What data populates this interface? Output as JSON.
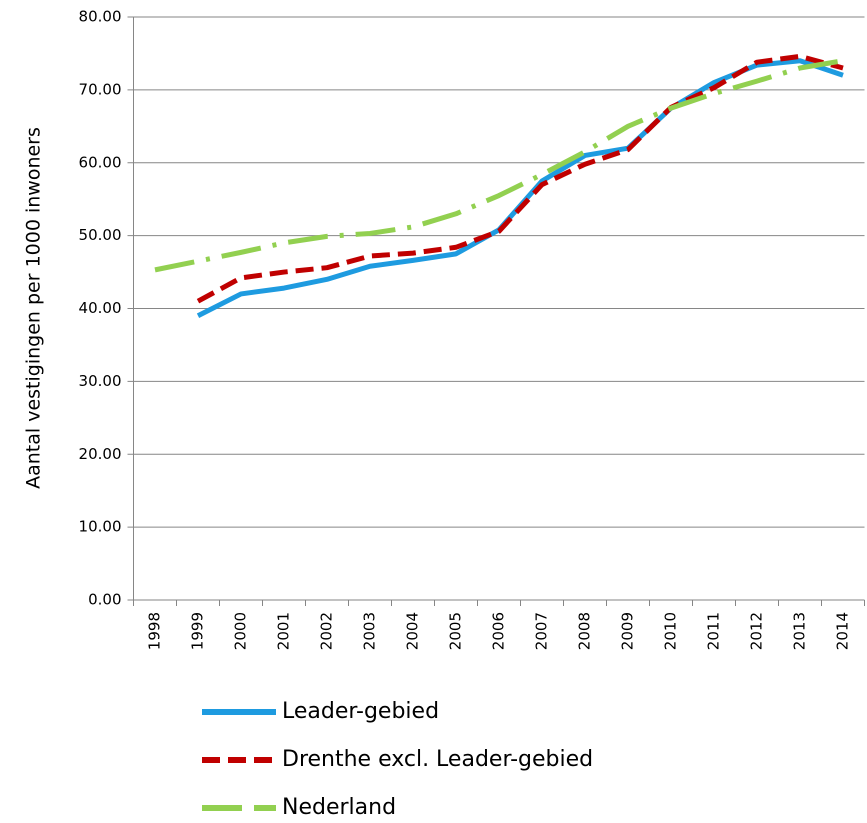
{
  "chart_data": {
    "type": "line",
    "y_label": "Aantal vestigingen per 1000 inwoners",
    "categories": [
      "1998",
      "1999",
      "2000",
      "2001",
      "2002",
      "2003",
      "2004",
      "2005",
      "2006",
      "2007",
      "2008",
      "2009",
      "2010",
      "2011",
      "2012",
      "2013",
      "2014"
    ],
    "series": [
      {
        "name": "Leader-gebied",
        "color": "#1e9be0",
        "values": [
          null,
          39.0,
          42.0,
          42.8,
          44.0,
          45.8,
          46.6,
          47.5,
          50.8,
          57.5,
          61.0,
          62.0,
          67.5,
          71.0,
          73.4,
          74.0,
          72.0
        ]
      },
      {
        "name": "Drenthe excl. Leader-gebied",
        "color": "#c00000",
        "values": [
          null,
          41.0,
          44.2,
          45.0,
          45.6,
          47.2,
          47.6,
          48.4,
          50.6,
          57.0,
          59.8,
          61.8,
          67.6,
          70.3,
          73.8,
          74.6,
          73.0
        ]
      },
      {
        "name": "Nederland",
        "color": "#92d050",
        "values": [
          45.3,
          46.5,
          47.7,
          49.0,
          49.9,
          50.3,
          51.2,
          53.0,
          55.5,
          58.4,
          61.5,
          65.0,
          67.5,
          69.5,
          71.2,
          73.0,
          74.0
        ]
      }
    ],
    "ylim": [
      0,
      80
    ],
    "yticks": [
      {
        "value": 0,
        "label": "0.00"
      },
      {
        "value": 10,
        "label": "10.00"
      },
      {
        "value": 20,
        "label": "20.00"
      },
      {
        "value": 30,
        "label": "30.00"
      },
      {
        "value": 40,
        "label": "40.00"
      },
      {
        "value": 50,
        "label": "50.00"
      },
      {
        "value": 60,
        "label": "60.00"
      },
      {
        "value": 70,
        "label": "70.00"
      },
      {
        "value": 80,
        "label": "80.00"
      }
    ],
    "grid": true
  }
}
